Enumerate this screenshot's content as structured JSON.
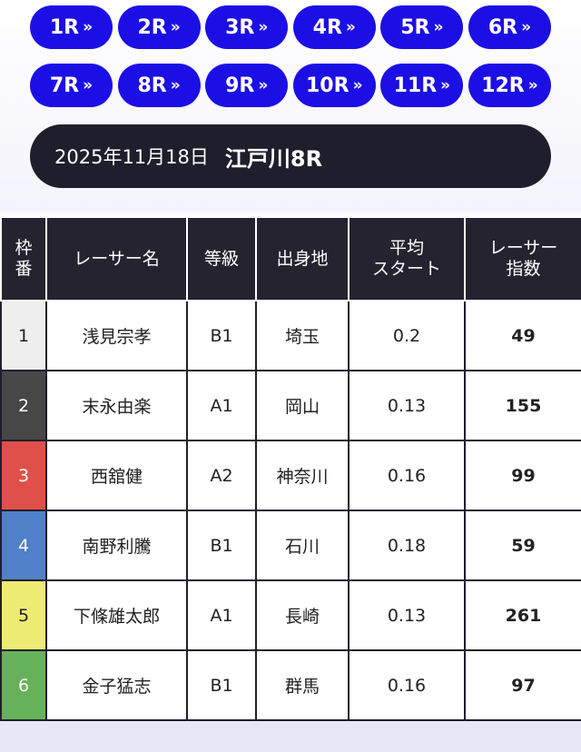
{
  "race_buttons": [
    "1R",
    "2R",
    "3R",
    "4R",
    "5R",
    "6R",
    "7R",
    "8R",
    "9R",
    "10R",
    "11R",
    "12R"
  ],
  "banner": {
    "date": "2025年11月18日",
    "race": "江戸川8R"
  },
  "table": {
    "header": [
      [
        "枠",
        "番"
      ],
      [
        "レーサー名"
      ],
      [
        "等級"
      ],
      [
        "出身地"
      ],
      [
        "平均",
        "スタート"
      ],
      [
        "レーサー",
        "指数"
      ]
    ],
    "rows": [
      [
        "1",
        "浅見宗孝",
        "B1",
        "埼玉",
        "0.2",
        "49"
      ],
      [
        "2",
        "末永由楽",
        "A1",
        "岡山",
        "0.13",
        "155"
      ],
      [
        "3",
        "西舘健",
        "A2",
        "神奈川",
        "0.16",
        "99"
      ],
      [
        "4",
        "南野利騰",
        "B1",
        "石川",
        "0.18",
        "59"
      ],
      [
        "5",
        "下條雄太郎",
        "A1",
        "長崎",
        "0.13",
        "261"
      ],
      [
        "6",
        "金子猛志",
        "B1",
        "群馬",
        "0.16",
        "97"
      ]
    ]
  }
}
